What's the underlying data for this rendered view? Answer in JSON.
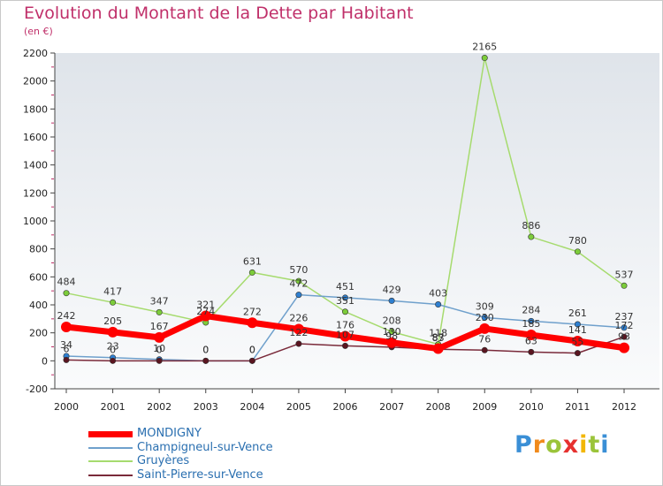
{
  "header": {
    "title": "Evolution du Montant de la Dette par Habitant",
    "subtitle": "(en €)"
  },
  "logo": {
    "letters": [
      "P",
      "r",
      "o",
      "x",
      "i",
      "t",
      "i"
    ],
    "colors": [
      "#3a8fd6",
      "#f08a1c",
      "#9bc43a",
      "#e6312f",
      "#f2b705",
      "#9bc43a",
      "#3a8fd6"
    ]
  },
  "colors": {
    "title": "#c0306a",
    "axis": "#444444",
    "grid_minor": "#c0306a",
    "background_gradient": [
      "#dfe4ea",
      "#fafbfc"
    ]
  },
  "chart_data": {
    "type": "line",
    "title": "Evolution du Montant de la Dette par Habitant",
    "subtitle": "(en €)",
    "x": [
      "2000",
      "2001",
      "2002",
      "2003",
      "2004",
      "2005",
      "2006",
      "2007",
      "2008",
      "2009",
      "2010",
      "2011",
      "2012"
    ],
    "ylim": [
      -200,
      2200
    ],
    "yticks": [
      "-200",
      "0",
      "200",
      "400",
      "600",
      "800",
      "1000",
      "1200",
      "1400",
      "1600",
      "1800",
      "2000",
      "2200"
    ],
    "legend_position": "bottom-left",
    "series": [
      {
        "name": "MONDIGNY",
        "color": "#ff0000",
        "marker_color": "#ff0000",
        "values": [
          242,
          205,
          167,
          321,
          272,
          226,
          176,
          130,
          87,
          230,
          185,
          141,
          93
        ],
        "labels": [
          "242",
          "205",
          "167",
          "321",
          "272",
          "226",
          "176",
          "130",
          "87",
          "230",
          "185",
          "141",
          "93"
        ]
      },
      {
        "name": "Champigneul-sur-Vence",
        "color": "#6fa0cc",
        "marker_color": "#2e7fd0",
        "values": [
          34,
          23,
          10,
          0,
          0,
          472,
          451,
          429,
          403,
          309,
          284,
          261,
          237
        ],
        "labels": [
          "34",
          "23",
          "10",
          "0",
          "0",
          "472",
          "451",
          "429",
          "403",
          "309",
          "284",
          "261",
          "237"
        ]
      },
      {
        "name": "Gruyères",
        "color": "#a6db6e",
        "marker_color": "#7ccc3a",
        "values": [
          484,
          417,
          347,
          274,
          631,
          570,
          351,
          208,
          118,
          2165,
          886,
          780,
          537
        ],
        "labels": [
          "484",
          "417",
          "347",
          "274",
          "631",
          "570",
          "351",
          "208",
          "118",
          "2165",
          "886",
          "780",
          "537"
        ]
      },
      {
        "name": "Saint-Pierre-sur-Vence",
        "color": "#7a2a3a",
        "marker_color": "#5a1520",
        "values": [
          6,
          0,
          0,
          0,
          0,
          122,
          107,
          98,
          83,
          76,
          63,
          55,
          172
        ],
        "labels": [
          "6",
          "0",
          "0",
          "0",
          "0",
          "122",
          "107",
          "98",
          "83",
          "76",
          "63",
          "55",
          "172"
        ]
      }
    ]
  }
}
